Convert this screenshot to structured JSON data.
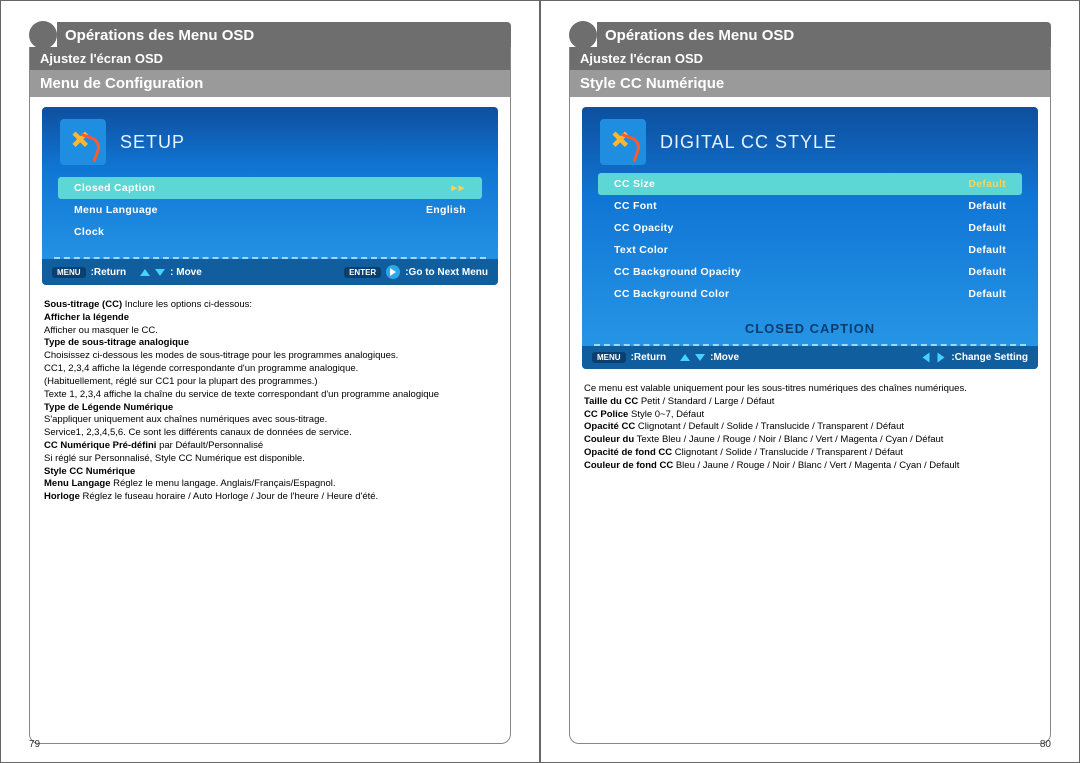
{
  "left": {
    "header": "Opérations des Menu OSD",
    "sub": "Ajustez l'écran OSD",
    "section": "Menu de Configuration",
    "osd_title": "SETUP",
    "rows": [
      {
        "label": "Closed Caption",
        "value": "▸▸",
        "hl": true
      },
      {
        "label": "Menu Language",
        "value": "English",
        "hl": false
      },
      {
        "label": "Clock",
        "value": "",
        "hl": false
      }
    ],
    "footer": {
      "menu": "MENU",
      "return": ":Return",
      "move": ": Move",
      "enter": "ENTER",
      "next": ":Go to Next Menu"
    },
    "text": [
      [
        "b",
        "Sous-titrage (CC)"
      ],
      [
        "t",
        " Inclure les options ci-dessous:"
      ],
      [
        "br"
      ],
      [
        "b",
        "Afficher la légende"
      ],
      [
        "br"
      ],
      [
        "t",
        "Afficher ou masquer le CC."
      ],
      [
        "br"
      ],
      [
        "b",
        "Type de sous-titrage analogique"
      ],
      [
        "br"
      ],
      [
        "t",
        "Choisissez ci-dessous les modes de sous-titrage pour les programmes analogiques."
      ],
      [
        "br"
      ],
      [
        "t",
        "CC1, 2,3,4 affiche la légende correspondante d'un programme analogique."
      ],
      [
        "br"
      ],
      [
        "t",
        "(Habituellement, réglé sur CC1 pour la plupart des programmes.)"
      ],
      [
        "br"
      ],
      [
        "t",
        "Texte 1, 2,3,4 affiche la chaîne du service de texte correspondant d'un programme analogique"
      ],
      [
        "br"
      ],
      [
        "b",
        "Type de Légende Numérique"
      ],
      [
        "br"
      ],
      [
        "t",
        "S'appliquer uniquement aux chaînes numériques avec sous-titrage."
      ],
      [
        "br"
      ],
      [
        "t",
        "Service1, 2,3,4,5,6. Ce sont les différents canaux de données de service."
      ],
      [
        "br"
      ],
      [
        "b",
        "CC Numérique Pré-défini"
      ],
      [
        "t",
        " par Défault/Personnalisé"
      ],
      [
        "br"
      ],
      [
        "t",
        "Si réglé sur Personnalisé, Style CC Numérique est disponible."
      ],
      [
        "br"
      ],
      [
        "b",
        "Style CC Numérique"
      ],
      [
        "br"
      ],
      [
        "b",
        "Menu Langage"
      ],
      [
        "t",
        " Réglez le menu langage. Anglais/Français/Espagnol."
      ],
      [
        "br"
      ],
      [
        "b",
        "Horloge"
      ],
      [
        "t",
        " Réglez le fuseau horaire / Auto Horloge / Jour de l'heure / Heure d'été."
      ]
    ],
    "pageno": "79"
  },
  "right": {
    "header": "Opérations des Menu OSD",
    "sub": "Ajustez l'écran OSD",
    "section": "Style CC Numérique",
    "osd_title": "DIGITAL CC STYLE",
    "rows": [
      {
        "label": "CC Size",
        "value": "Default",
        "hl": true
      },
      {
        "label": "CC Font",
        "value": "Default",
        "hl": false
      },
      {
        "label": "CC Opacity",
        "value": "Default",
        "hl": false
      },
      {
        "label": "Text Color",
        "value": "Default",
        "hl": false
      },
      {
        "label": "CC Background Opacity",
        "value": "Default",
        "hl": false
      },
      {
        "label": "CC Background Color",
        "value": "Default",
        "hl": false
      }
    ],
    "caption": "CLOSED CAPTION",
    "footer": {
      "menu": "MENU",
      "return": ":Return",
      "move": ":Move",
      "change": ":Change Setting"
    },
    "text": [
      [
        "t",
        "Ce menu est valable uniquement pour les sous-titres numériques des chaînes numériques."
      ],
      [
        "br"
      ],
      [
        "b",
        "Taille du CC"
      ],
      [
        "t",
        " Petit / Standard / Large / Défaut"
      ],
      [
        "br"
      ],
      [
        "b",
        "CC Police"
      ],
      [
        "t",
        " Style 0~7, Défaut"
      ],
      [
        "br"
      ],
      [
        "b",
        "Opacité CC"
      ],
      [
        "t",
        " Clignotant / Default / Solide / Translucide / Transparent / Défaut"
      ],
      [
        "br"
      ],
      [
        "b",
        "Couleur du"
      ],
      [
        "t",
        " Texte Bleu / Jaune / Rouge / Noir / Blanc / Vert / Magenta / Cyan / Défaut"
      ],
      [
        "br"
      ],
      [
        "b",
        "Opacité de fond CC"
      ],
      [
        "t",
        " Clignotant / Solide / Translucide / Transparent / Défaut"
      ],
      [
        "br"
      ],
      [
        "b",
        "Couleur de fond CC"
      ],
      [
        "t",
        " Bleu / Jaune / Rouge / Noir / Blanc / Vert / Magenta / Cyan / Default"
      ]
    ],
    "pageno": "80"
  }
}
